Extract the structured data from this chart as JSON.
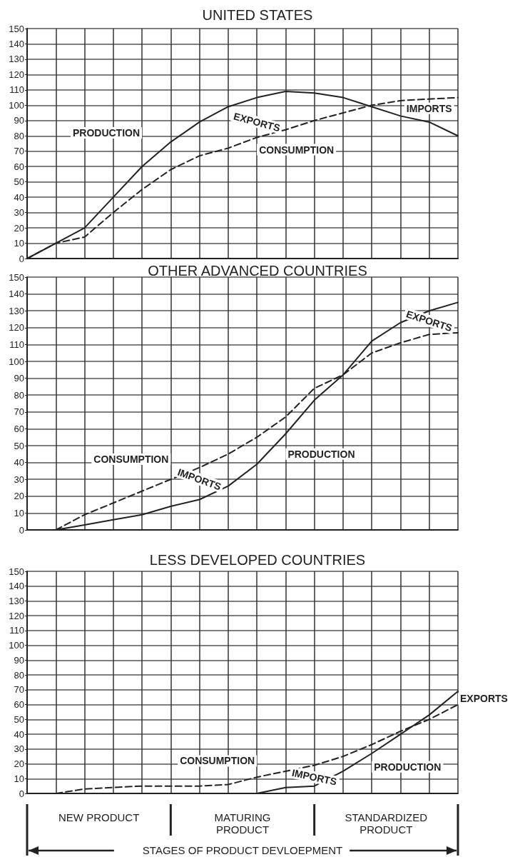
{
  "chart_data": [
    {
      "type": "line",
      "title": "UNITED STATES",
      "categories": [
        null,
        null,
        null,
        null,
        null,
        null,
        null,
        null,
        null,
        null,
        null,
        null,
        null,
        null,
        null,
        null
      ],
      "series": [
        {
          "name": "PRODUCTION",
          "color": "#222222",
          "line_style": "solid",
          "values": [
            0,
            10,
            20,
            40,
            60,
            76,
            89,
            99,
            105,
            109,
            108,
            105,
            99,
            93,
            89,
            80
          ]
        },
        {
          "name": "CONSUMPTION",
          "color": "#222222",
          "line_style": "dashed",
          "values": [
            0,
            10,
            14,
            30,
            45,
            58,
            67,
            72,
            79,
            84,
            90,
            95,
            100,
            103,
            104,
            105
          ]
        }
      ],
      "annotations": [
        "EXPORTS",
        "IMPORTS"
      ],
      "ylim": [
        0,
        150
      ],
      "yticks": [
        0,
        10,
        20,
        30,
        40,
        50,
        60,
        70,
        80,
        90,
        100,
        110,
        120,
        130,
        140,
        150
      ],
      "grid": true,
      "tick_labels": "y",
      "marker": "none",
      "legend": false
    },
    {
      "type": "line",
      "title": "OTHER ADVANCED COUNTRIES",
      "categories": [
        null,
        null,
        null,
        null,
        null,
        null,
        null,
        null,
        null,
        null,
        null,
        null,
        null,
        null,
        null,
        null
      ],
      "series": [
        {
          "name": "CONSUMPTION",
          "color": "#222222",
          "line_style": "dashed",
          "values": [
            null,
            0,
            9,
            16,
            23,
            30,
            37,
            45,
            55,
            67,
            84,
            92,
            105,
            111,
            116,
            117
          ]
        },
        {
          "name": "PRODUCTION",
          "color": "#222222",
          "line_style": "solid",
          "values": [
            null,
            0,
            3,
            6,
            9,
            14,
            18,
            26,
            39,
            57,
            77,
            92,
            112,
            123,
            130,
            135
          ]
        }
      ],
      "annotations": [
        "IMPORTS",
        "EXPORTS"
      ],
      "ylim": [
        0,
        150
      ],
      "yticks": [
        0,
        10,
        20,
        30,
        40,
        50,
        60,
        70,
        80,
        90,
        100,
        110,
        120,
        130,
        140,
        150
      ],
      "grid": true,
      "tick_labels": "y",
      "marker": "none",
      "legend": false
    },
    {
      "type": "line",
      "title": "LESS DEVELOPED COUNTRIES",
      "categories": [
        null,
        null,
        null,
        null,
        null,
        null,
        null,
        null,
        null,
        null,
        null,
        null,
        null,
        null,
        null,
        null
      ],
      "series": [
        {
          "name": "CONSUMPTION",
          "color": "#222222",
          "line_style": "dashed",
          "values": [
            null,
            0,
            3,
            4,
            5,
            5,
            5,
            6,
            11,
            15,
            19,
            25,
            33,
            42,
            50,
            60
          ]
        },
        {
          "name": "PRODUCTION",
          "color": "#222222",
          "line_style": "solid",
          "values": [
            null,
            null,
            null,
            null,
            null,
            null,
            null,
            null,
            0,
            4,
            5,
            15,
            27,
            40,
            53,
            69
          ]
        }
      ],
      "annotations": [
        "IMPORTS",
        "EXPORTS",
        "NEW PRODUCT",
        "MATURING PRODUCT",
        "STANDARDIZED PRODUCT",
        "STAGES OF PRODUCT DEVLOEPMENT"
      ],
      "ylim": [
        0,
        150
      ],
      "yticks": [
        0,
        10,
        20,
        30,
        40,
        50,
        60,
        70,
        80,
        90,
        100,
        110,
        120,
        130,
        140,
        150
      ],
      "grid": true,
      "tick_labels": "y",
      "marker": "none",
      "legend": false
    }
  ]
}
